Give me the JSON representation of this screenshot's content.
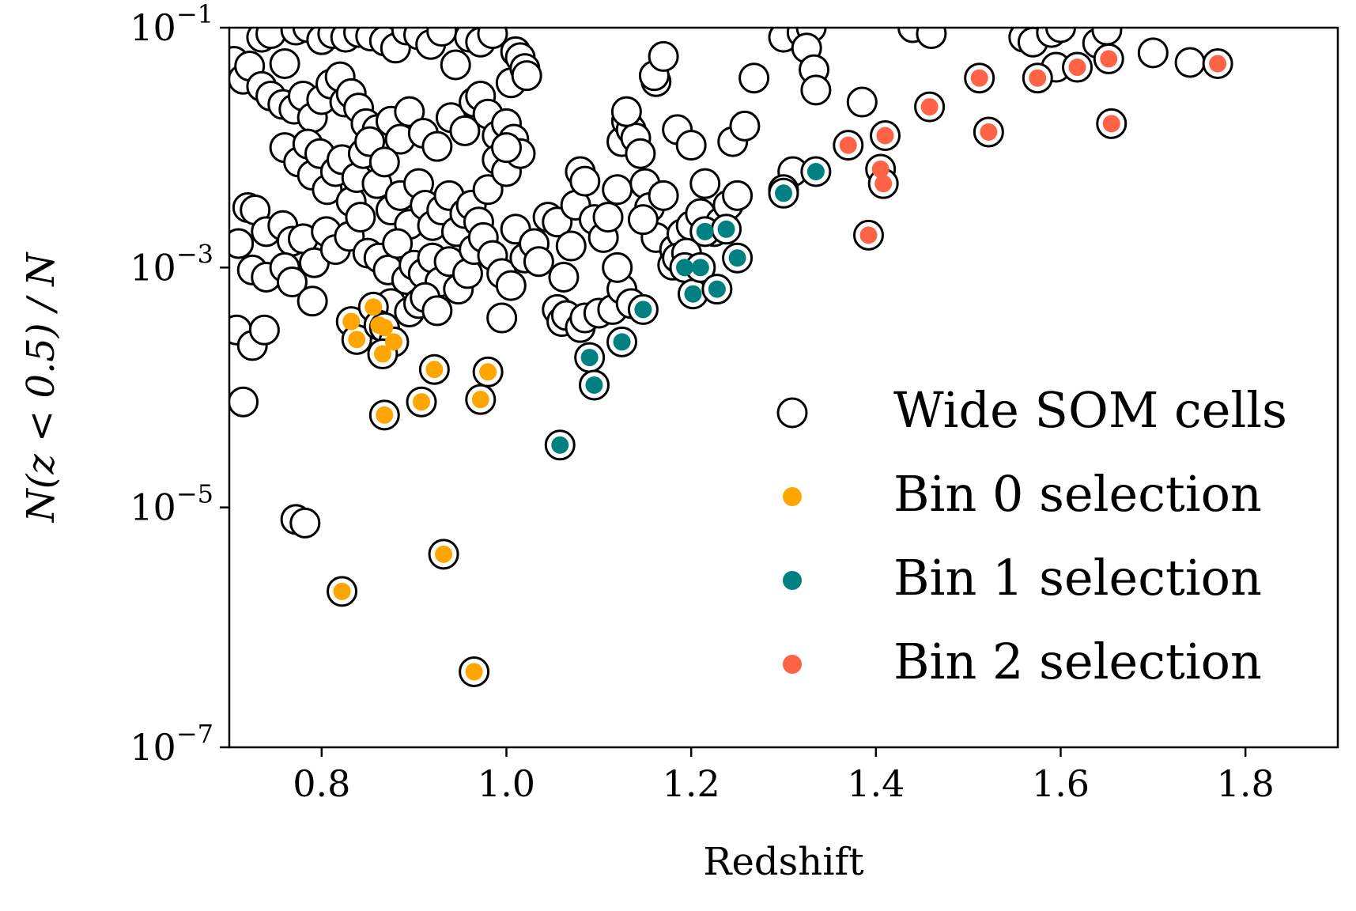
{
  "chart_data": {
    "type": "scatter",
    "title": "",
    "xlabel": "Redshift",
    "ylabel": "N(z < 0.5) / N",
    "yscale": "log",
    "xlim": [
      0.7,
      1.9
    ],
    "ylim_exponent": [
      -7,
      -1
    ],
    "xticks": [
      {
        "value": 0.8,
        "label": "0.8"
      },
      {
        "value": 1.0,
        "label": "1.0"
      },
      {
        "value": 1.2,
        "label": "1.2"
      },
      {
        "value": 1.4,
        "label": "1.4"
      },
      {
        "value": 1.6,
        "label": "1.6"
      },
      {
        "value": 1.8,
        "label": "1.8"
      }
    ],
    "yticks": [
      {
        "exponent": -1,
        "base": "10",
        "exp_label": "−1"
      },
      {
        "exponent": -3,
        "base": "10",
        "exp_label": "−3"
      },
      {
        "exponent": -5,
        "base": "10",
        "exp_label": "−5"
      },
      {
        "exponent": -7,
        "base": "10",
        "exp_label": "−7"
      }
    ],
    "legend": {
      "position": "lower-right",
      "entries": [
        {
          "label": "Wide SOM cells",
          "style": "open-circle"
        },
        {
          "label": "Bin 0 selection",
          "color": "#FFA500"
        },
        {
          "label": "Bin 1 selection",
          "color": "#008080"
        },
        {
          "label": "Bin 2 selection",
          "color": "#FF6347"
        }
      ]
    },
    "series": [
      {
        "name": "Wide SOM cells",
        "note": "y values given as log10(N(z<0.5)/N)",
        "points": [
          [
            0.705,
            -1.28
          ],
          [
            0.715,
            -1.43
          ],
          [
            0.722,
            -1.32
          ],
          [
            0.735,
            -1.08
          ],
          [
            0.745,
            -1.05
          ],
          [
            0.76,
            -1.3
          ],
          [
            0.772,
            -1.02
          ],
          [
            0.785,
            -1.0
          ],
          [
            0.8,
            -1.1
          ],
          [
            0.812,
            -1.05
          ],
          [
            0.826,
            -1.08
          ],
          [
            0.84,
            -1.04
          ],
          [
            0.853,
            -1.07
          ],
          [
            0.868,
            -1.11
          ],
          [
            0.88,
            -1.17
          ],
          [
            0.892,
            -1.02
          ],
          [
            0.905,
            -1.06
          ],
          [
            0.918,
            -1.14
          ],
          [
            0.93,
            -1.03
          ],
          [
            0.945,
            -1.31
          ],
          [
            0.96,
            -1.08
          ],
          [
            0.972,
            -1.12
          ],
          [
            0.985,
            -1.05
          ],
          [
            1.01,
            -1.2
          ],
          [
            1.015,
            -1.25
          ],
          [
            0.735,
            -1.49
          ],
          [
            0.745,
            -1.57
          ],
          [
            0.758,
            -1.64
          ],
          [
            0.77,
            -1.68
          ],
          [
            0.78,
            -1.57
          ],
          [
            0.79,
            -1.75
          ],
          [
            0.8,
            -1.6
          ],
          [
            0.81,
            -1.47
          ],
          [
            0.82,
            -1.41
          ],
          [
            0.825,
            -1.62
          ],
          [
            0.832,
            -1.55
          ],
          [
            0.84,
            -1.67
          ],
          [
            0.848,
            -1.8
          ],
          [
            0.86,
            -1.85
          ],
          [
            0.875,
            -1.78
          ],
          [
            0.885,
            -1.93
          ],
          [
            0.895,
            -1.7
          ],
          [
            0.91,
            -1.88
          ],
          [
            0.925,
            -1.99
          ],
          [
            0.94,
            -1.75
          ],
          [
            0.955,
            -1.86
          ],
          [
            0.965,
            -1.62
          ],
          [
            0.972,
            -1.57
          ],
          [
            0.98,
            -1.72
          ],
          [
            0.99,
            -1.9
          ],
          [
            1.0,
            -1.8
          ],
          [
            1.005,
            -1.46
          ],
          [
            1.02,
            -1.34
          ],
          [
            1.022,
            -1.4
          ],
          [
            0.76,
            -2.0
          ],
          [
            0.775,
            -2.12
          ],
          [
            0.785,
            -1.97
          ],
          [
            0.79,
            -2.23
          ],
          [
            0.798,
            -2.05
          ],
          [
            0.806,
            -2.35
          ],
          [
            0.815,
            -2.2
          ],
          [
            0.822,
            -2.1
          ],
          [
            0.832,
            -2.45
          ],
          [
            0.838,
            -2.25
          ],
          [
            0.845,
            -2.05
          ],
          [
            0.852,
            -1.95
          ],
          [
            0.86,
            -2.3
          ],
          [
            0.868,
            -2.12
          ],
          [
            0.875,
            -2.52
          ],
          [
            0.885,
            -2.4
          ],
          [
            0.895,
            -2.64
          ],
          [
            0.905,
            -2.3
          ],
          [
            0.912,
            -2.48
          ],
          [
            0.92,
            -2.65
          ],
          [
            0.93,
            -2.52
          ],
          [
            0.938,
            -2.4
          ],
          [
            0.946,
            -2.7
          ],
          [
            0.955,
            -2.55
          ],
          [
            0.962,
            -2.48
          ],
          [
            0.97,
            -2.62
          ],
          [
            0.98,
            -2.35
          ],
          [
            0.99,
            -2.1
          ],
          [
            1.0,
            -2.2
          ],
          [
            1.008,
            -1.93
          ],
          [
            1.015,
            -2.05
          ],
          [
            1.0,
            -2.0
          ],
          [
            0.72,
            -2.5
          ],
          [
            0.728,
            -2.52
          ],
          [
            0.74,
            -2.7
          ],
          [
            0.758,
            -2.65
          ],
          [
            0.768,
            -2.78
          ],
          [
            0.78,
            -2.76
          ],
          [
            0.792,
            -2.96
          ],
          [
            0.805,
            -2.7
          ],
          [
            0.815,
            -2.85
          ],
          [
            0.83,
            -2.74
          ],
          [
            0.842,
            -2.58
          ],
          [
            0.85,
            -2.88
          ],
          [
            0.862,
            -2.92
          ],
          [
            0.872,
            -3.02
          ],
          [
            0.882,
            -2.8
          ],
          [
            0.892,
            -3.1
          ],
          [
            0.9,
            -2.98
          ],
          [
            0.91,
            -3.05
          ],
          [
            0.92,
            -2.92
          ],
          [
            0.928,
            -3.12
          ],
          [
            0.938,
            -2.95
          ],
          [
            0.948,
            -3.18
          ],
          [
            0.958,
            -3.05
          ],
          [
            0.965,
            -2.85
          ],
          [
            0.975,
            -2.75
          ],
          [
            0.985,
            -2.9
          ],
          [
            0.995,
            -3.05
          ],
          [
            1.005,
            -3.15
          ],
          [
            1.01,
            -2.68
          ],
          [
            1.02,
            -2.92
          ],
          [
            1.03,
            -2.8
          ],
          [
            0.71,
            -2.8
          ],
          [
            0.725,
            -3.02
          ],
          [
            0.74,
            -3.08
          ],
          [
            0.76,
            -3.0
          ],
          [
            0.768,
            -3.12
          ],
          [
            0.79,
            -3.28
          ],
          [
            0.875,
            -3.3
          ],
          [
            0.895,
            -3.37
          ],
          [
            0.905,
            -3.3
          ],
          [
            0.912,
            -3.25
          ],
          [
            0.925,
            -3.36
          ],
          [
            0.995,
            -3.42
          ],
          [
            0.708,
            -3.52
          ],
          [
            0.725,
            -3.65
          ],
          [
            0.738,
            -3.52
          ],
          [
            0.715,
            -4.12
          ],
          [
            0.772,
            -5.1
          ],
          [
            0.782,
            -5.13
          ],
          [
            1.035,
            -2.95
          ],
          [
            1.045,
            -2.58
          ],
          [
            1.055,
            -2.62
          ],
          [
            1.062,
            -3.08
          ],
          [
            1.07,
            -2.82
          ],
          [
            1.075,
            -2.48
          ],
          [
            1.08,
            -2.2
          ],
          [
            1.085,
            -2.28
          ],
          [
            1.095,
            -2.6
          ],
          [
            1.105,
            -2.75
          ],
          [
            1.11,
            -2.58
          ],
          [
            1.12,
            -2.35
          ],
          [
            1.125,
            -1.95
          ],
          [
            1.13,
            -1.78
          ],
          [
            1.135,
            -1.85
          ],
          [
            1.14,
            -1.92
          ],
          [
            1.145,
            -2.05
          ],
          [
            1.15,
            -2.3
          ],
          [
            1.155,
            -2.5
          ],
          [
            1.162,
            -2.75
          ],
          [
            1.17,
            -2.4
          ],
          [
            1.182,
            -2.85
          ],
          [
            1.19,
            -2.72
          ],
          [
            1.2,
            -2.65
          ],
          [
            1.21,
            -2.55
          ],
          [
            1.215,
            -2.3
          ],
          [
            1.225,
            -2.7
          ],
          [
            1.232,
            -2.62
          ],
          [
            1.24,
            -2.48
          ],
          [
            1.245,
            -1.95
          ],
          [
            1.25,
            -2.4
          ],
          [
            1.258,
            -1.82
          ],
          [
            1.268,
            -1.42
          ],
          [
            1.185,
            -1.85
          ],
          [
            1.2,
            -1.98
          ],
          [
            1.162,
            -1.45
          ],
          [
            1.16,
            -1.4
          ],
          [
            1.17,
            -1.24
          ],
          [
            1.148,
            -2.6
          ],
          [
            1.13,
            -1.7
          ],
          [
            1.055,
            -3.35
          ],
          [
            1.06,
            -3.45
          ],
          [
            1.065,
            -3.4
          ],
          [
            1.08,
            -3.5
          ],
          [
            1.085,
            -3.42
          ],
          [
            1.1,
            -3.38
          ],
          [
            1.115,
            -3.35
          ],
          [
            1.125,
            -3.18
          ],
          [
            1.12,
            -3.0
          ],
          [
            1.135,
            -3.3
          ],
          [
            1.18,
            -2.98
          ],
          [
            1.185,
            -2.92
          ],
          [
            1.195,
            -2.88
          ],
          [
            1.3,
            -1.08
          ],
          [
            1.32,
            -1.04
          ],
          [
            1.33,
            -1.0
          ],
          [
            1.325,
            -1.17
          ],
          [
            1.333,
            -1.35
          ],
          [
            1.335,
            -1.52
          ],
          [
            1.385,
            -1.62
          ],
          [
            1.31,
            -2.2
          ],
          [
            1.3,
            -2.35
          ],
          [
            1.44,
            -1.0
          ],
          [
            1.46,
            -1.05
          ],
          [
            1.56,
            -1.08
          ],
          [
            1.57,
            -1.12
          ],
          [
            1.59,
            -1.04
          ],
          [
            1.6,
            -1.0
          ],
          [
            1.64,
            -1.13
          ],
          [
            1.65,
            -1.02
          ],
          [
            1.7,
            -1.21
          ],
          [
            1.74,
            -1.29
          ],
          [
            1.595,
            -1.33
          ]
        ]
      },
      {
        "name": "Bin 0 selection",
        "color": "#FFA500",
        "points": [
          [
            0.832,
            -3.45
          ],
          [
            0.838,
            -3.6
          ],
          [
            0.856,
            -3.33
          ],
          [
            0.862,
            -3.48
          ],
          [
            0.868,
            -3.5
          ],
          [
            0.878,
            -3.62
          ],
          [
            0.866,
            -3.72
          ],
          [
            0.922,
            -3.85
          ],
          [
            0.98,
            -3.87
          ],
          [
            0.908,
            -4.12
          ],
          [
            0.972,
            -4.1
          ],
          [
            0.868,
            -4.23
          ],
          [
            0.932,
            -5.39
          ],
          [
            0.822,
            -5.7
          ],
          [
            0.965,
            -6.37
          ]
        ]
      },
      {
        "name": "Bin 1 selection",
        "color": "#008080",
        "points": [
          [
            1.09,
            -3.75
          ],
          [
            1.095,
            -3.98
          ],
          [
            1.125,
            -3.62
          ],
          [
            1.148,
            -3.35
          ],
          [
            1.058,
            -4.48
          ],
          [
            1.193,
            -3.0
          ],
          [
            1.202,
            -3.22
          ],
          [
            1.21,
            -3.0
          ],
          [
            1.215,
            -2.7
          ],
          [
            1.228,
            -3.18
          ],
          [
            1.238,
            -2.68
          ],
          [
            1.25,
            -2.92
          ],
          [
            1.3,
            -2.38
          ],
          [
            1.335,
            -2.2
          ]
        ]
      },
      {
        "name": "Bin 2 selection",
        "color": "#FF6347",
        "points": [
          [
            1.37,
            -1.98
          ],
          [
            1.392,
            -2.73
          ],
          [
            1.405,
            -2.18
          ],
          [
            1.408,
            -2.3
          ],
          [
            1.41,
            -1.9
          ],
          [
            1.458,
            -1.66
          ],
          [
            1.512,
            -1.42
          ],
          [
            1.522,
            -1.87
          ],
          [
            1.575,
            -1.42
          ],
          [
            1.618,
            -1.33
          ],
          [
            1.652,
            -1.26
          ],
          [
            1.655,
            -1.8
          ],
          [
            1.77,
            -1.3
          ]
        ]
      }
    ]
  }
}
